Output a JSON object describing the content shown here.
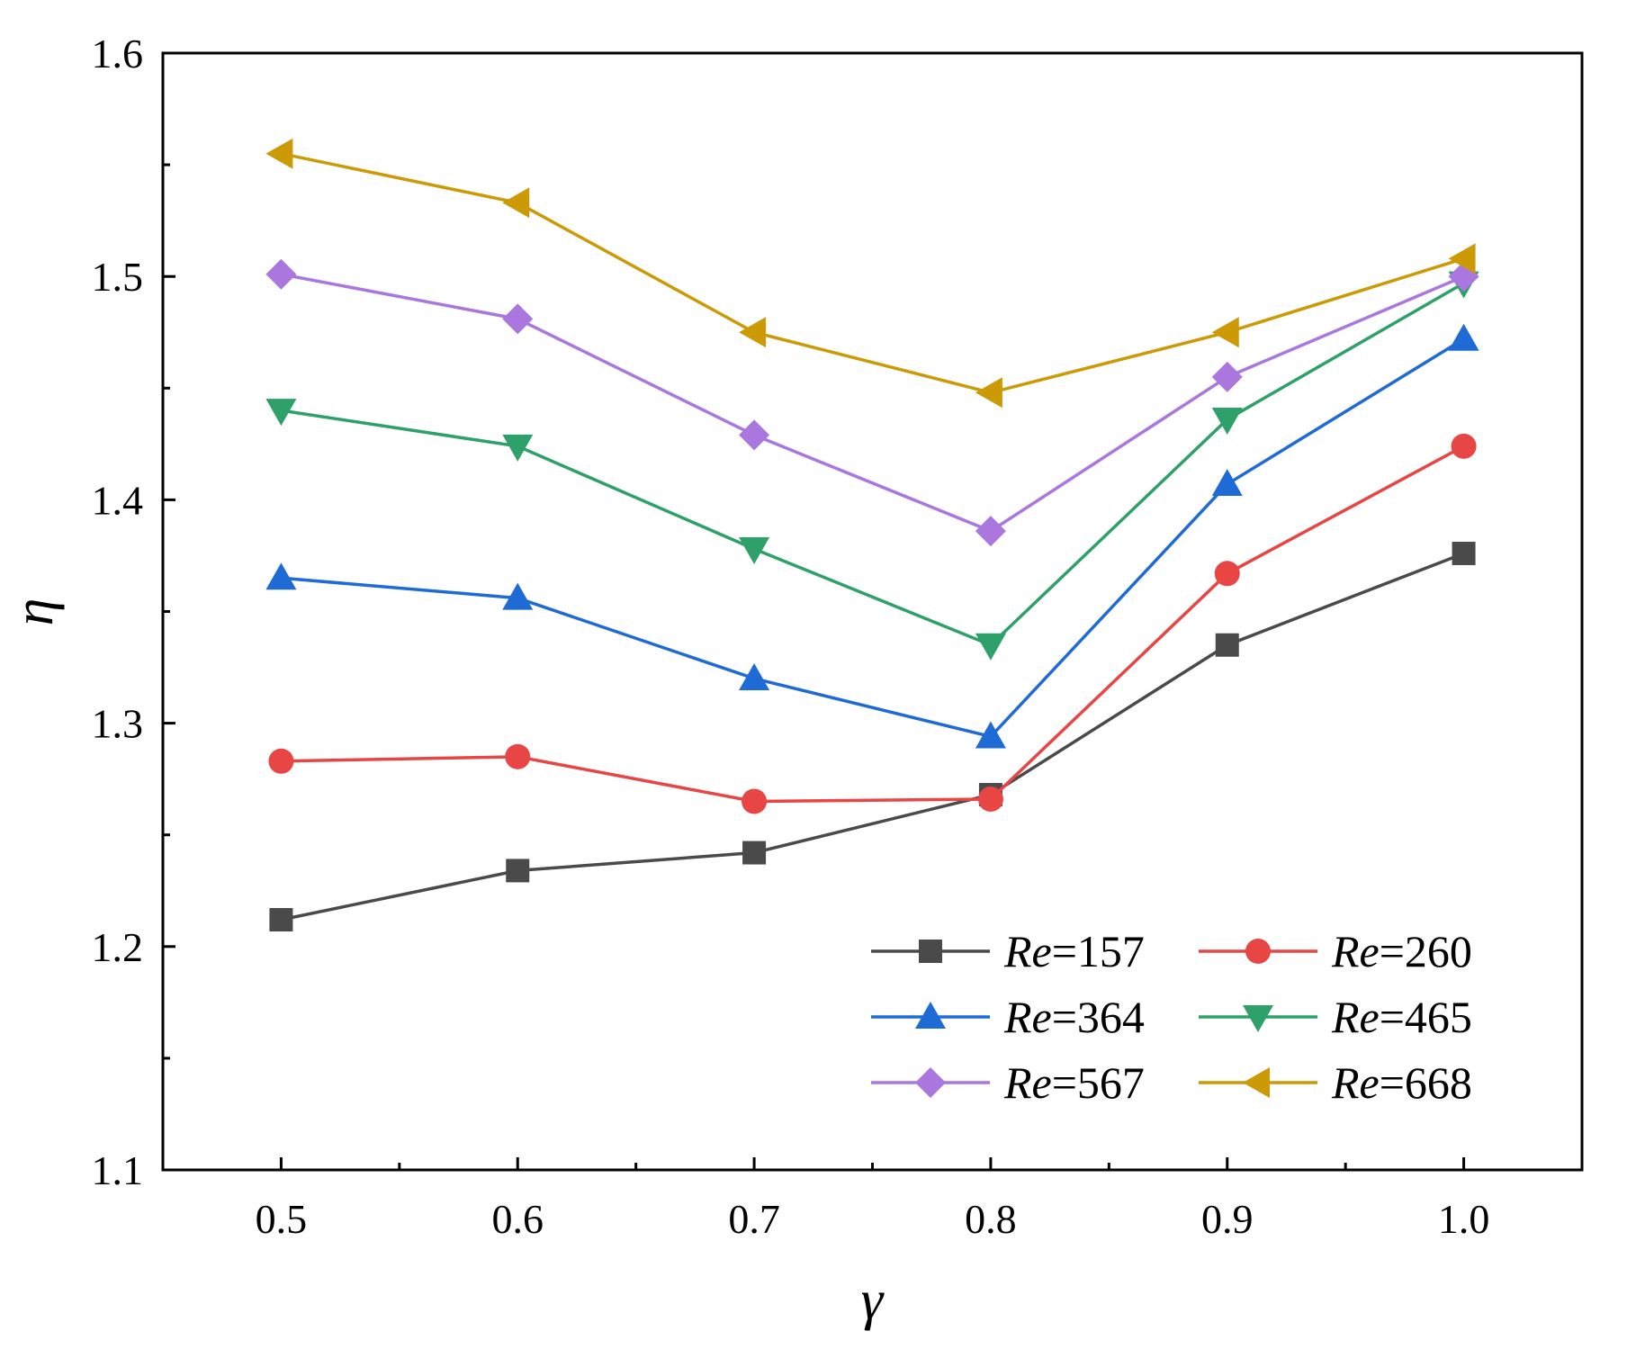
{
  "chart_data": {
    "type": "line",
    "title": "",
    "xlabel": "γ",
    "ylabel": "η",
    "x": [
      0.5,
      0.6,
      0.7,
      0.8,
      0.9,
      1.0
    ],
    "xlim": [
      0.45,
      1.05
    ],
    "ylim": [
      1.1,
      1.6
    ],
    "x_ticks": [
      0.5,
      0.6,
      0.7,
      0.8,
      0.9,
      1.0
    ],
    "x_tick_labels": [
      "0.5",
      "0.6",
      "0.7",
      "0.8",
      "0.9",
      "1.0"
    ],
    "y_ticks": [
      1.1,
      1.2,
      1.3,
      1.4,
      1.5,
      1.6
    ],
    "y_tick_labels": [
      "1.1",
      "1.2",
      "1.3",
      "1.4",
      "1.5",
      "1.6"
    ],
    "grid": false,
    "legend_position": "bottom-right",
    "series": [
      {
        "name": "Re=157",
        "name_prefix": "Re",
        "name_suffix": "=157",
        "color": "#4a4a4a",
        "marker": "square",
        "values": [
          1.212,
          1.234,
          1.242,
          1.268,
          1.335,
          1.376
        ]
      },
      {
        "name": "Re=260",
        "name_prefix": "Re",
        "name_suffix": "=260",
        "color": "#e84545",
        "marker": "circle",
        "values": [
          1.283,
          1.285,
          1.265,
          1.266,
          1.367,
          1.424
        ]
      },
      {
        "name": "Re=364",
        "name_prefix": "Re",
        "name_suffix": "=364",
        "color": "#1f6bd6",
        "marker": "triangle-up",
        "values": [
          1.365,
          1.356,
          1.32,
          1.294,
          1.407,
          1.472
        ]
      },
      {
        "name": "Re=465",
        "name_prefix": "Re",
        "name_suffix": "=465",
        "color": "#2ea06a",
        "marker": "triangle-down",
        "values": [
          1.44,
          1.424,
          1.378,
          1.335,
          1.436,
          1.497
        ]
      },
      {
        "name": "Re=567",
        "name_prefix": "Re",
        "name_suffix": "=567",
        "color": "#a977dd",
        "marker": "diamond",
        "values": [
          1.501,
          1.481,
          1.429,
          1.386,
          1.455,
          1.5
        ]
      },
      {
        "name": "Re=668",
        "name_prefix": "Re",
        "name_suffix": "=668",
        "color": "#cc9a06",
        "marker": "triangle-left",
        "values": [
          1.555,
          1.533,
          1.475,
          1.448,
          1.475,
          1.508
        ]
      }
    ]
  }
}
